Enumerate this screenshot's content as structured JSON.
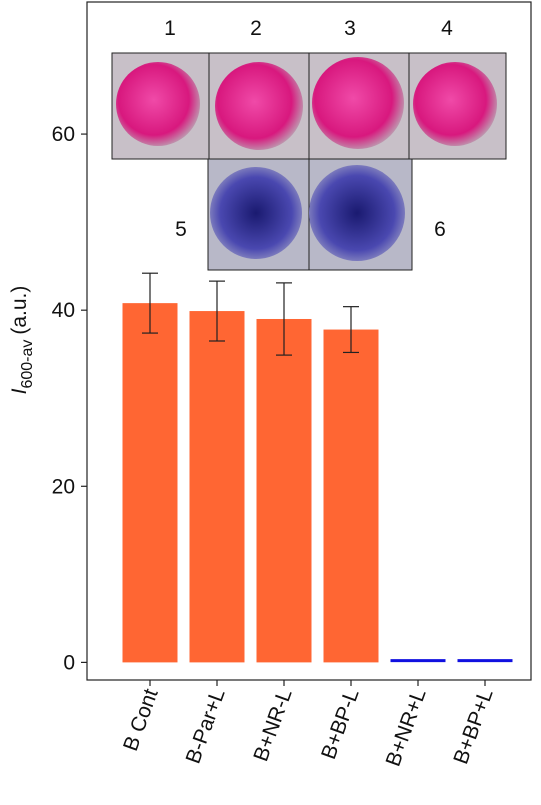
{
  "chart_data": {
    "type": "bar",
    "categories": [
      "B Cont",
      "B-Par+L",
      "B+NR-L",
      "B+BP-L",
      "B+NR+L",
      "B+BP+L"
    ],
    "values": [
      40.8,
      39.9,
      39.0,
      37.8,
      0.2,
      0.2
    ],
    "errors": [
      3.4,
      3.4,
      4.1,
      2.6,
      0,
      0
    ],
    "colors": [
      "#ff6633",
      "#ff6633",
      "#ff6633",
      "#ff6633",
      "#1010e0",
      "#1010e0"
    ],
    "ylabel": {
      "symbol": "I",
      "subscript": "600-av",
      "unit": "(a.u.)"
    },
    "ylim": [
      -2,
      75
    ],
    "yticks": [
      0,
      20,
      40,
      60
    ],
    "annotations": [
      "1",
      "2",
      "3",
      "4",
      "5",
      "6"
    ]
  }
}
